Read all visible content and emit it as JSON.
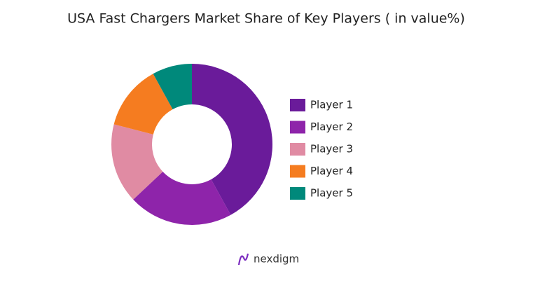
{
  "chart_data": {
    "type": "donut",
    "title": "USA Fast Chargers Market Share of Key Players ( in value%)",
    "categories": [
      "Player 1",
      "Player 2",
      "Player 3",
      "Player 4",
      "Player 5"
    ],
    "values": [
      42,
      21,
      16,
      13,
      8
    ],
    "colors": [
      "#6a1b9a",
      "#8e24aa",
      "#e08ba3",
      "#f57c20",
      "#00897b"
    ],
    "legend": "right",
    "brand": "nexdigm"
  }
}
